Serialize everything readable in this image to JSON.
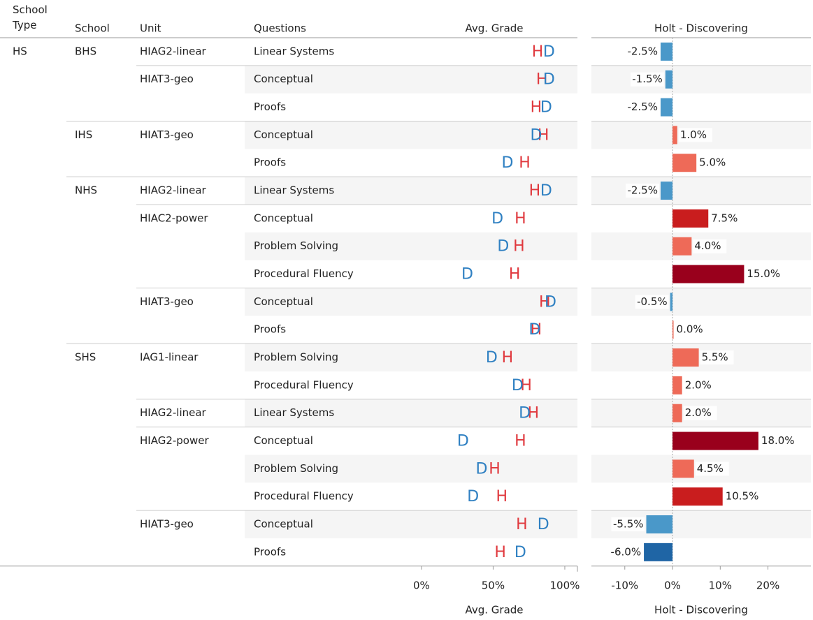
{
  "chart_data": {
    "type": "dot-and-bar-table",
    "headers": [
      "School Type",
      "School",
      "Unit",
      "Questions"
    ],
    "rows": [
      [
        "HS",
        "BHS",
        "HIAG2-linear",
        "Linear Systems"
      ],
      [
        null,
        null,
        "HIAT3-geo",
        "Conceptual"
      ],
      [
        null,
        null,
        null,
        "Proofs"
      ],
      [
        null,
        "IHS",
        "HIAT3-geo",
        "Conceptual"
      ],
      [
        null,
        null,
        null,
        "Proofs"
      ],
      [
        null,
        "NHS",
        "HIAG2-linear",
        "Linear Systems"
      ],
      [
        null,
        null,
        "HIAC2-power",
        "Conceptual"
      ],
      [
        null,
        null,
        null,
        "Problem Solving"
      ],
      [
        null,
        null,
        null,
        "Procedural Fluency"
      ],
      [
        null,
        null,
        "HIAT3-geo",
        "Conceptual"
      ],
      [
        null,
        null,
        null,
        "Proofs"
      ],
      [
        null,
        "SHS",
        "IAG1-linear",
        "Problem Solving"
      ],
      [
        null,
        null,
        null,
        "Procedural Fluency"
      ],
      [
        null,
        null,
        "HIAG2-linear",
        "Linear Systems"
      ],
      [
        null,
        null,
        "HIAG2-power",
        "Conceptual"
      ],
      [
        null,
        null,
        null,
        "Problem Solving"
      ],
      [
        null,
        null,
        null,
        "Procedural Fluency"
      ],
      [
        null,
        null,
        "HIAT3-geo",
        "Conceptual"
      ],
      [
        null,
        null,
        null,
        "Proofs"
      ]
    ],
    "grade_title": "Avg. Grade",
    "grade_xlim": [
      -6.3,
      108.8
    ],
    "grade_xticks": [
      {
        "value": 0,
        "label": "0%"
      },
      {
        "value": 50,
        "label": "50%"
      },
      {
        "value": 100,
        "label": "100%"
      }
    ],
    "series": [
      {
        "name": "H",
        "color": "#e0393e",
        "values": [
          81,
          84,
          80,
          85,
          72,
          79,
          69,
          68,
          65,
          86,
          80,
          60,
          73,
          78,
          69,
          51,
          56,
          70,
          55
        ]
      },
      {
        "name": "D",
        "color": "#2f80c2",
        "values": [
          89,
          89,
          87,
          80,
          60,
          87,
          53,
          57,
          32,
          90,
          79,
          49,
          67,
          72,
          29,
          42,
          36,
          85,
          69
        ]
      }
    ],
    "diff_title": "Holt - Discovering",
    "diff_xlim": [
      -17,
      29
    ],
    "diff_xticks": [
      {
        "value": -10,
        "label": "-10%"
      },
      {
        "value": 0,
        "label": "0%"
      },
      {
        "value": 10,
        "label": "10%"
      },
      {
        "value": 20,
        "label": "20%"
      }
    ],
    "diff_values": [
      -2.5,
      -1.5,
      -2.5,
      1.0,
      5.0,
      -2.5,
      7.5,
      4.0,
      15.0,
      -0.5,
      0.0,
      5.5,
      2.0,
      2.0,
      18.0,
      4.5,
      10.5,
      -5.5,
      -6.0
    ],
    "diff_value_labels": [
      "-2.5%",
      "-1.5%",
      "-2.5%",
      "1.0%",
      "5.0%",
      "-2.5%",
      "7.5%",
      "4.0%",
      "15.0%",
      "-0.5%",
      "0.0%",
      "5.5%",
      "2.0%",
      "2.0%",
      "18.0%",
      "4.5%",
      "10.5%",
      "-5.5%",
      "-6.0%"
    ],
    "diff_colors": [
      "#4a98c9",
      "#4a98c9",
      "#4a98c9",
      "#ee6a58",
      "#ee6a58",
      "#4a98c9",
      "#c91d1e",
      "#ee6a58",
      "#99001c",
      "#4a98c9",
      "#ee6a58",
      "#ee6a58",
      "#ee6a58",
      "#ee6a58",
      "#99001c",
      "#ee6a58",
      "#c91d1e",
      "#4a98c9",
      "#1f65a5"
    ]
  }
}
